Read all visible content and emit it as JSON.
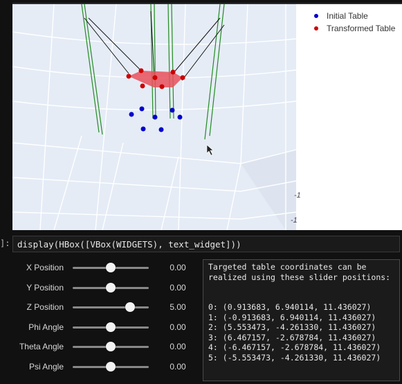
{
  "plot": {
    "legend": [
      {
        "label": "Initial Table",
        "color": "#0000cc"
      },
      {
        "label": "Transformed Table",
        "color": "#cc0000"
      }
    ],
    "axis_ticks": [
      "-1",
      "-1"
    ],
    "colors": {
      "background": "#e5ecf6",
      "leg": "#228b22",
      "cable": "#111111",
      "platform": "#e8505b"
    }
  },
  "code_cell": {
    "prompt": "]:",
    "code": "display(HBox([VBox(WIDGETS), text_widget]))"
  },
  "sliders": [
    {
      "label": "X Position",
      "value": "0.00",
      "fraction": 0.5
    },
    {
      "label": "Y Position",
      "value": "0.00",
      "fraction": 0.5
    },
    {
      "label": "Z Position",
      "value": "5.00",
      "fraction": 0.75
    },
    {
      "label": "Phi Angle",
      "value": "0.00",
      "fraction": 0.5
    },
    {
      "label": "Theta Angle",
      "value": "0.00",
      "fraction": 0.5
    },
    {
      "label": "Psi Angle",
      "value": "0.00",
      "fraction": 0.5
    }
  ],
  "output": {
    "header_line1": "Targeted table coordinates can be",
    "header_line2": "realized using these slider positions:",
    "lines": [
      "0: (0.913683, 6.940114, 11.436027)",
      "1: (-0.913683, 6.940114, 11.436027)",
      "2: (5.553473, -4.261330, 11.436027)",
      "3: (6.467157, -2.678784, 11.436027)",
      "4: (-6.467157, -2.678784, 11.436027)",
      "5: (-5.553473, -4.261330, 11.436027)"
    ]
  }
}
